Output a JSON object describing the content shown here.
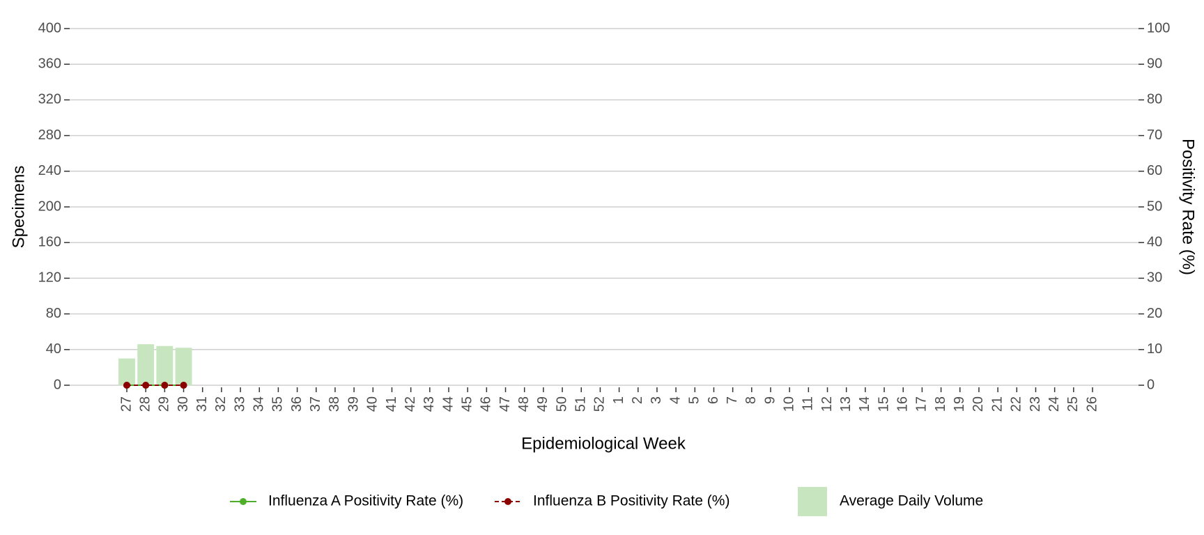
{
  "chart_data": {
    "type": "bar_line",
    "x_label": "Epidemiological Week",
    "y_label": "Specimens",
    "y2_label": "Positivity Rate (%)",
    "categories": [
      "27",
      "28",
      "29",
      "30",
      "31",
      "32",
      "33",
      "34",
      "35",
      "36",
      "37",
      "38",
      "39",
      "40",
      "41",
      "42",
      "43",
      "44",
      "45",
      "46",
      "47",
      "48",
      "49",
      "50",
      "51",
      "52",
      "1",
      "2",
      "3",
      "4",
      "5",
      "6",
      "7",
      "8",
      "9",
      "10",
      "11",
      "12",
      "13",
      "14",
      "15",
      "16",
      "17",
      "18",
      "19",
      "20",
      "21",
      "22",
      "23",
      "24",
      "25",
      "26"
    ],
    "ylim": [
      0,
      400
    ],
    "yticks": [
      0,
      40,
      80,
      120,
      160,
      200,
      240,
      280,
      320,
      360,
      400
    ],
    "y2lim": [
      0,
      100
    ],
    "y2ticks": [
      0,
      10,
      20,
      30,
      40,
      50,
      60,
      70,
      80,
      90,
      100
    ],
    "grid": true,
    "legend": "bottom",
    "series": [
      {
        "name": "Influenza A Positivity Rate (%)",
        "color": "#4daf28",
        "kind": "line",
        "axis": "y2",
        "values": [
          0,
          0,
          0,
          0,
          null,
          null,
          null,
          null,
          null,
          null,
          null,
          null,
          null,
          null,
          null,
          null,
          null,
          null,
          null,
          null,
          null,
          null,
          null,
          null,
          null,
          null,
          null,
          null,
          null,
          null,
          null,
          null,
          null,
          null,
          null,
          null,
          null,
          null,
          null,
          null,
          null,
          null,
          null,
          null,
          null,
          null,
          null,
          null,
          null,
          null,
          null,
          null
        ]
      },
      {
        "name": "Influenza B Positivity Rate (%)",
        "color": "#8b0000",
        "kind": "line",
        "dashed": true,
        "axis": "y2",
        "values": [
          0,
          0,
          0,
          0,
          null,
          null,
          null,
          null,
          null,
          null,
          null,
          null,
          null,
          null,
          null,
          null,
          null,
          null,
          null,
          null,
          null,
          null,
          null,
          null,
          null,
          null,
          null,
          null,
          null,
          null,
          null,
          null,
          null,
          null,
          null,
          null,
          null,
          null,
          null,
          null,
          null,
          null,
          null,
          null,
          null,
          null,
          null,
          null,
          null,
          null,
          null,
          null
        ]
      },
      {
        "name": "Average Daily Volume",
        "color": "#c7e6bf",
        "kind": "bar",
        "axis": "y",
        "values": [
          30,
          46,
          44,
          42,
          null,
          null,
          null,
          null,
          null,
          null,
          null,
          null,
          null,
          null,
          null,
          null,
          null,
          null,
          null,
          null,
          null,
          null,
          null,
          null,
          null,
          null,
          null,
          null,
          null,
          null,
          null,
          null,
          null,
          null,
          null,
          null,
          null,
          null,
          null,
          null,
          null,
          null,
          null,
          null,
          null,
          null,
          null,
          null,
          null,
          null,
          null,
          null
        ]
      }
    ]
  }
}
